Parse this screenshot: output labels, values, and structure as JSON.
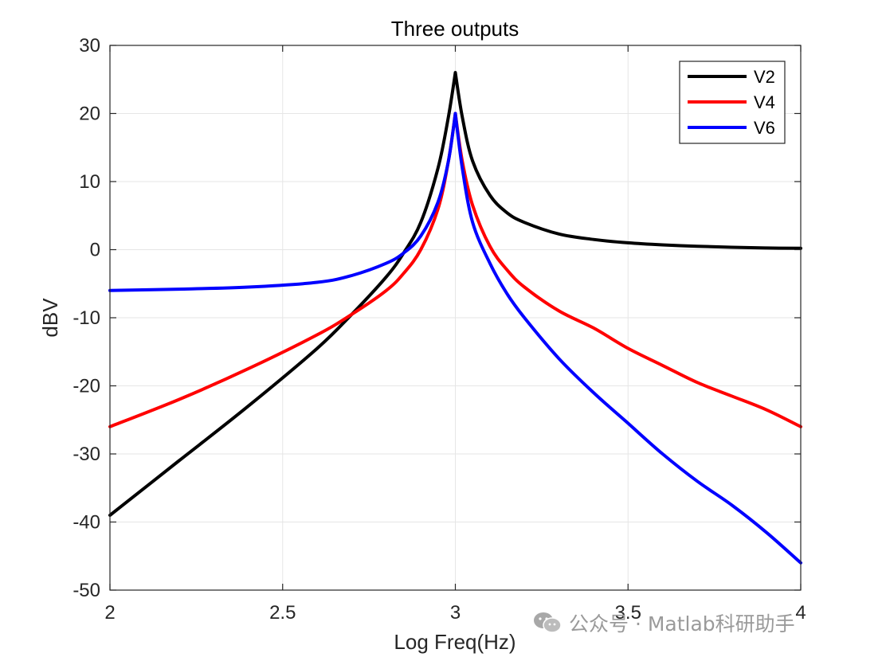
{
  "chart_data": {
    "type": "line",
    "title": "Three outputs",
    "xlabel": "Log Freq(Hz)",
    "ylabel": "dBV",
    "xlim": [
      2,
      4
    ],
    "ylim": [
      -50,
      30
    ],
    "xticks": [
      2,
      2.5,
      3,
      3.5,
      4
    ],
    "xtick_labels": [
      "2",
      "2.5",
      "3",
      "3.5",
      "4"
    ],
    "yticks": [
      -50,
      -40,
      -30,
      -20,
      -10,
      0,
      10,
      20,
      30
    ],
    "ytick_labels": [
      "-50",
      "-40",
      "-30",
      "-20",
      "-10",
      "0",
      "10",
      "20",
      "30"
    ],
    "grid": true,
    "legend_position": "top-right",
    "x": [
      2.0,
      2.2,
      2.4,
      2.6,
      2.7,
      2.8,
      2.85,
      2.9,
      2.95,
      2.98,
      3.0,
      3.02,
      3.05,
      3.1,
      3.15,
      3.2,
      3.3,
      3.4,
      3.5,
      3.6,
      3.7,
      3.8,
      3.9,
      4.0
    ],
    "series": [
      {
        "name": "V2",
        "color": "#000000",
        "values": [
          -39,
          -31,
          -23,
          -14.5,
          -9.5,
          -4,
          -0.5,
          4,
          12,
          19.5,
          26,
          19.5,
          13,
          8,
          5.4,
          4,
          2.3,
          1.5,
          1,
          0.7,
          0.5,
          0.35,
          0.25,
          0.2
        ]
      },
      {
        "name": "V4",
        "color": "#ff0000",
        "values": [
          -26,
          -22,
          -17.5,
          -12.5,
          -9.5,
          -6,
          -3.5,
          0,
          6,
          13,
          20,
          13,
          6.5,
          0.5,
          -3,
          -5.5,
          -9,
          -11.5,
          -14.5,
          -17,
          -19.5,
          -21.5,
          -23.5,
          -26
        ]
      },
      {
        "name": "V6",
        "color": "#0000ff",
        "values": [
          -6,
          -5.8,
          -5.5,
          -4.8,
          -3.8,
          -2,
          -0.5,
          2,
          7,
          13,
          20,
          12,
          4,
          -2,
          -6.5,
          -10,
          -16,
          -21,
          -25.5,
          -30,
          -34,
          -37.5,
          -41.5,
          -46
        ]
      }
    ]
  },
  "watermark": {
    "text": "公众号 · Matlab科研助手",
    "icon": "wechat-icon",
    "color": "#9a9a9a"
  }
}
